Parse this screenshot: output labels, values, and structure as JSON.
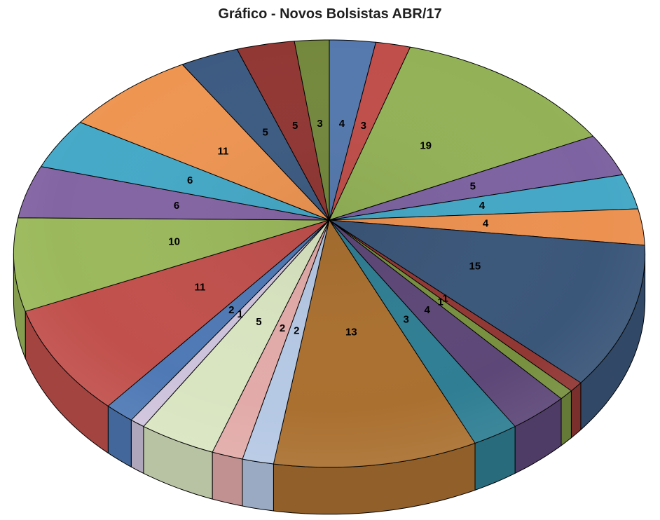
{
  "page": {
    "background": "#FFFFFF"
  },
  "chart_data": {
    "type": "pie",
    "style": "3d-perspective",
    "title": "Gráfico - Novos Bolsistas ABR/17",
    "title_color": "#1F1F1F",
    "legend": "none",
    "grid": false,
    "start_angle_deg": 0,
    "direction": "clockwise",
    "total": 145,
    "label_color": "#000000",
    "outline_color": "#000000",
    "labels_show": "value",
    "slices": [
      {
        "value": 4,
        "label": "4",
        "color": "#5579AE"
      },
      {
        "value": 3,
        "label": "3",
        "color": "#C04E4A"
      },
      {
        "value": 19,
        "label": "19",
        "color": "#93B257"
      },
      {
        "value": 5,
        "label": "5",
        "color": "#7D63A1"
      },
      {
        "value": 4,
        "label": "4",
        "color": "#44A8C6"
      },
      {
        "value": 4,
        "label": "4",
        "color": "#EC9150"
      },
      {
        "value": 15,
        "label": "15",
        "color": "#3A5679"
      },
      {
        "value": 1,
        "label": "1",
        "color": "#913734"
      },
      {
        "value": 1,
        "label": "1",
        "color": "#77903F"
      },
      {
        "value": 4,
        "label": "4",
        "color": "#5D4778"
      },
      {
        "value": 3,
        "label": "3",
        "color": "#2F7E93"
      },
      {
        "value": 13,
        "label": "13",
        "color": "#AA7030"
      },
      {
        "value": 2,
        "label": "2",
        "color": "#B5C8E4"
      },
      {
        "value": 2,
        "label": "2",
        "color": "#E2ABA9"
      },
      {
        "value": 5,
        "label": "5",
        "color": "#D9E5C1"
      },
      {
        "value": 1,
        "label": "1",
        "color": "#CEC3DC"
      },
      {
        "value": 2,
        "label": "2",
        "color": "#4F79B5"
      },
      {
        "value": 11,
        "label": "11",
        "color": "#C1504C"
      },
      {
        "value": 10,
        "label": "10",
        "color": "#9BB95C"
      },
      {
        "value": 6,
        "label": "6",
        "color": "#8465A4"
      },
      {
        "value": 6,
        "label": "6",
        "color": "#45A9C7"
      },
      {
        "value": 11,
        "label": "11",
        "color": "#EE9552"
      },
      {
        "value": 5,
        "label": "5",
        "color": "#3D5B82"
      },
      {
        "value": 5,
        "label": "5",
        "color": "#913734"
      },
      {
        "value": 3,
        "label": "3",
        "color": "#74883D"
      }
    ]
  }
}
